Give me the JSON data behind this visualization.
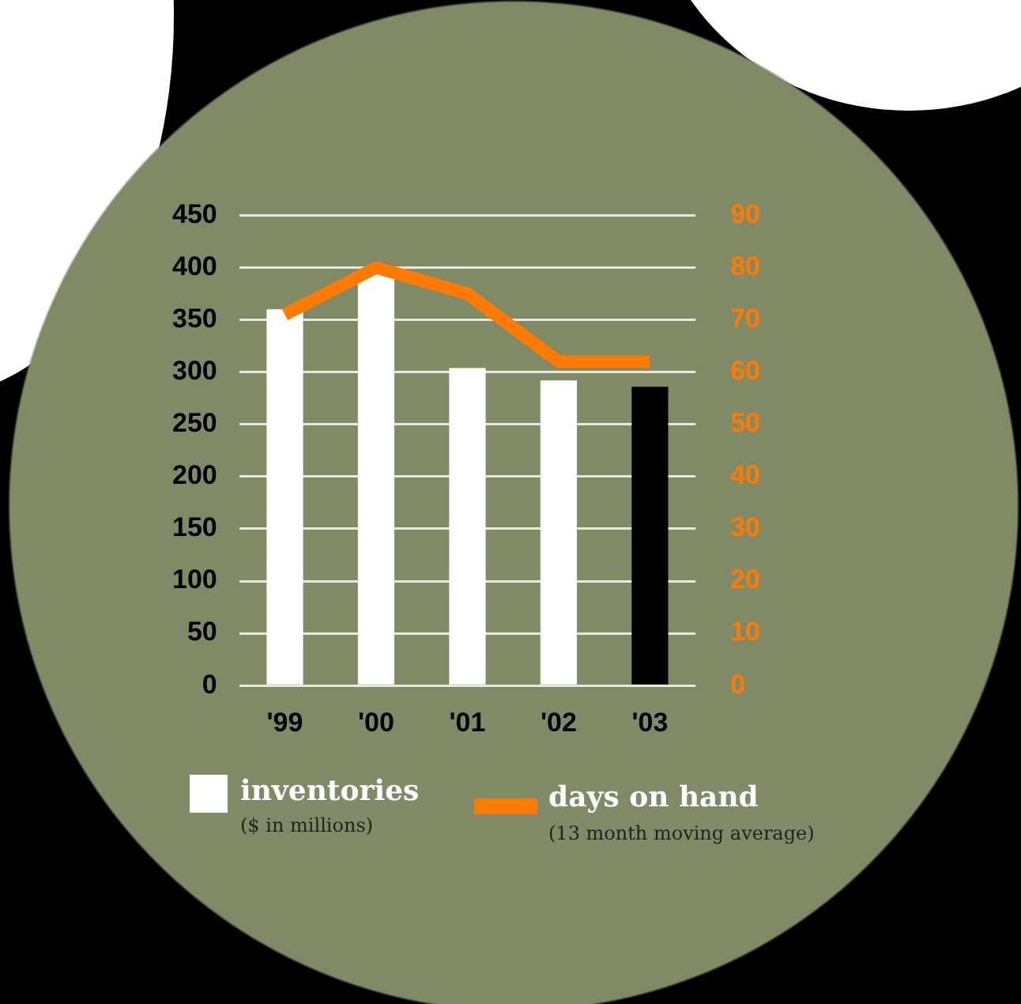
{
  "chart_data": {
    "type": "bar",
    "categories": [
      "'99",
      "'00",
      "'01",
      "'02",
      "'03"
    ],
    "series": [
      {
        "name": "inventories",
        "color": "#ffffff",
        "colors": [
          "#ffffff",
          "#ffffff",
          "#ffffff",
          "#ffffff",
          "#000000"
        ],
        "values": [
          360,
          397,
          304,
          292,
          286
        ]
      },
      {
        "name": "days on hand",
        "type": "line",
        "axis": "y2",
        "color": "#ff7a00",
        "values": [
          71,
          80,
          75,
          62,
          62
        ]
      }
    ],
    "ylim": [
      0,
      450
    ],
    "yticks": [
      0,
      50,
      100,
      150,
      200,
      250,
      300,
      350,
      400,
      450
    ],
    "y2lim": [
      0,
      90
    ],
    "y2ticks": [
      0,
      10,
      20,
      30,
      40,
      50,
      60,
      70,
      80,
      90
    ],
    "grid": "y",
    "legend": "bottom left",
    "marker": "none",
    "line_style": "solid",
    "annotations": [
      "($ in millions)",
      "(13 month moving average)"
    ]
  }
}
